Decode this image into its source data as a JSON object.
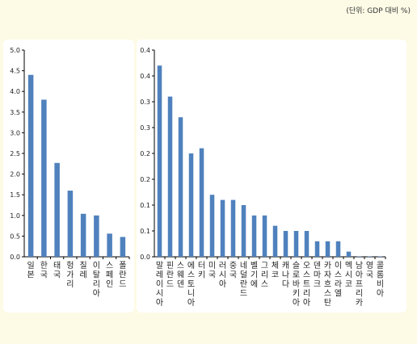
{
  "unit_note": "(단위: GDP 대비 %)",
  "colors": {
    "bar": "#4f81bd",
    "axis": "#000000",
    "page_bg": "#fdfbe6",
    "panel_bg": "#ffffff"
  },
  "chart_data": [
    {
      "type": "bar",
      "title": "",
      "xlabel": "",
      "ylabel": "",
      "ylim": [
        0,
        5.0
      ],
      "yticks": [
        "0.0",
        "0.5",
        "1.0",
        "1.5",
        "2.0",
        "2.5",
        "3.0",
        "3.5",
        "4.0",
        "4.5",
        "5.0"
      ],
      "categories": [
        "일본",
        "한국",
        "태국",
        "헝가리",
        "칠레",
        "이탈리아",
        "스페인",
        "폴란드"
      ],
      "values": [
        4.4,
        3.8,
        2.27,
        1.6,
        1.04,
        1.0,
        0.56,
        0.48
      ],
      "grid": false
    },
    {
      "type": "bar",
      "title": "",
      "xlabel": "",
      "ylabel": "",
      "ylim": [
        0,
        0.4
      ],
      "yticks": [
        "0.0",
        "0.1",
        "0.1",
        "0.2",
        "0.2",
        "0.3",
        "0.3",
        "0.4",
        "0.4"
      ],
      "categories": [
        "말레이시아",
        "핀란드",
        "스웨덴",
        "에스토니아",
        "터키",
        "미국",
        "러시아",
        "중국",
        "네덜란드",
        "벨기에",
        "그리스",
        "체코",
        "캐나다",
        "슬로바키아",
        "오스트리아",
        "덴마크",
        "카자흐스탄",
        "이스라엘",
        "멕시코",
        "남아프리카",
        "영국",
        "콜롬비아"
      ],
      "values": [
        0.37,
        0.31,
        0.27,
        0.2,
        0.21,
        0.12,
        0.11,
        0.11,
        0.1,
        0.08,
        0.08,
        0.06,
        0.05,
        0.05,
        0.05,
        0.03,
        0.03,
        0.03,
        0.01,
        0.0,
        0.0,
        0.0
      ],
      "grid": false
    }
  ]
}
